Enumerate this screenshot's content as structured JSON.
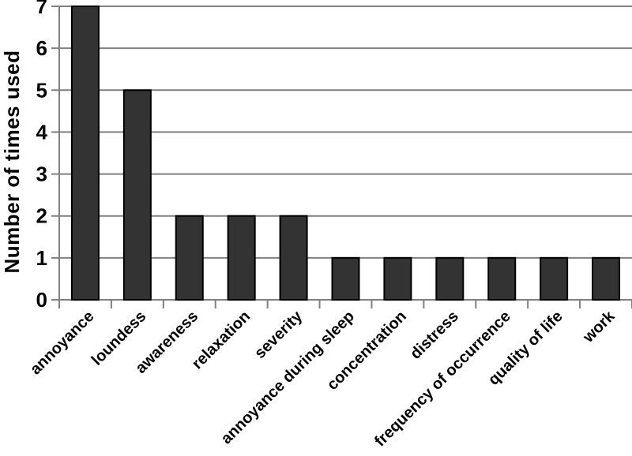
{
  "chart_data": {
    "type": "bar",
    "categories": [
      "annoyance",
      "loundess",
      "awareness",
      "relaxation",
      "severity",
      "annoyance during sleep",
      "concentration",
      "distress",
      "frequency of occurrence",
      "quality of life",
      "work"
    ],
    "values": [
      7,
      5,
      2,
      2,
      2,
      1,
      1,
      1,
      1,
      1,
      1
    ],
    "title": "",
    "xlabel": "",
    "ylabel": "Number of times used",
    "ylim": [
      0,
      7
    ],
    "yticks": [
      0,
      1,
      2,
      3,
      4,
      5,
      6,
      7
    ],
    "grid": true,
    "legend": false,
    "x_label_rotation_deg": -45,
    "colors": {
      "bar_fill": "#333333",
      "bar_border": "#000000",
      "gridline": "#808080",
      "axis_line": "#808080",
      "text": "#000000",
      "background": "#ffffff"
    }
  }
}
